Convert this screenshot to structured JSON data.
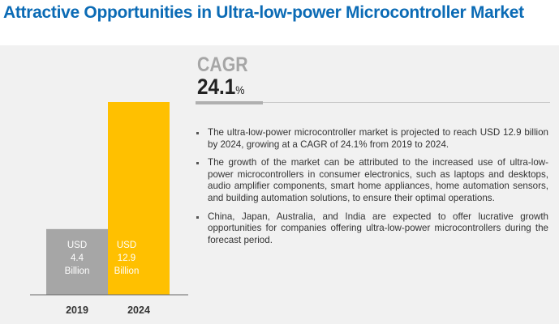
{
  "title": "Attractive Opportunities in Ultra-low-power Microcontroller Market",
  "cagr": {
    "label": "CAGR",
    "value": "24.1",
    "unit": "%"
  },
  "bullets": [
    "The ultra-low-power microcontroller market is projected to reach USD 12.9 billion by 2024, growing at a CAGR of 24.1% from 2019 to 2024.",
    "The growth of the market can be attributed to the increased use of ultra-low-power microcontrollers in consumer electronics, such as laptops and desktops, audio amplifier components, smart home appliances, home automation sensors, and building automation solutions, to ensure their optimal operations.",
    "China, Japan, Australia, and India are expected to offer lucrative growth opportunities for companies offering ultra-low-power microcontrollers during the forecast period."
  ],
  "colors": {
    "title": "#0b6bb5",
    "bar_2019": "#a6a6a6",
    "bar_2024": "#ffc000",
    "background": "#f1f1f1"
  },
  "chart_data": {
    "type": "bar",
    "categories": [
      "2019",
      "2024"
    ],
    "values": [
      4.4,
      12.9
    ],
    "unit": "USD Billion",
    "data_labels": [
      [
        "USD",
        "4.4",
        "Billion"
      ],
      [
        "USD",
        "12.9",
        "Billion"
      ]
    ],
    "ylim": [
      0,
      12.9
    ],
    "grid": false
  }
}
